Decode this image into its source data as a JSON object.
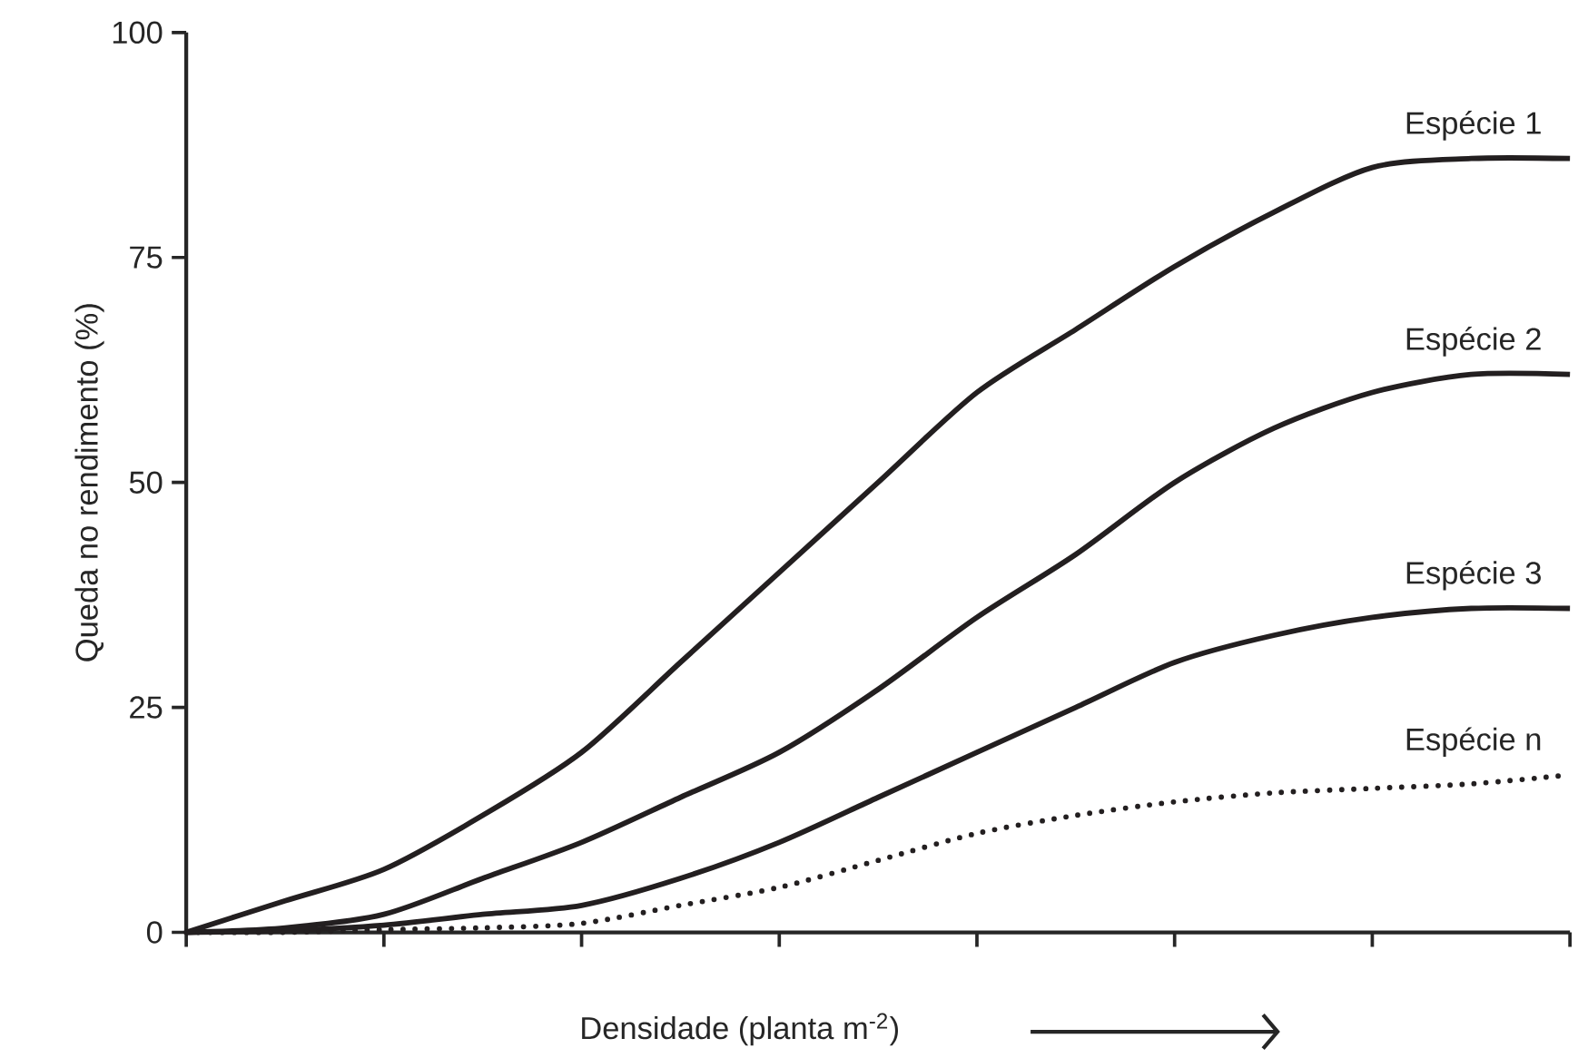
{
  "chart_data": {
    "type": "line",
    "xlabel": "Densidade (planta m$^{-2}$)",
    "ylabel": "Queda no rendimento (%)",
    "categories": [
      null,
      null,
      null,
      null,
      null,
      null,
      null,
      null,
      null,
      null,
      null,
      null,
      null,
      null,
      null
    ],
    "ylim": [
      0,
      100
    ],
    "yticks": [
      0,
      25,
      50,
      75,
      100
    ],
    "tick_labels": "y",
    "grid": false,
    "legend": false,
    "series": [
      {
        "name": "Espécie 1",
        "color": "#231f20",
        "line_style": "solid",
        "values": [
          0,
          3.5,
          7,
          13,
          20,
          30,
          40,
          50,
          60,
          67,
          74,
          80,
          85,
          86,
          86
        ]
      },
      {
        "name": "Espécie 2",
        "color": "#231f20",
        "line_style": "solid",
        "values": [
          0,
          0.5,
          2,
          6,
          10,
          15,
          20,
          27,
          35,
          42,
          50,
          56,
          60,
          62,
          62
        ]
      },
      {
        "name": "Espécie 3",
        "color": "#231f20",
        "line_style": "solid",
        "values": [
          0,
          0.2,
          0.8,
          2,
          3,
          6,
          10,
          15,
          20,
          25,
          30,
          33,
          35,
          36,
          36
        ]
      },
      {
        "name": "Espécie n",
        "color": "#231f20",
        "line_style": "dotted",
        "values": [
          0,
          0,
          0.3,
          0.5,
          1,
          3,
          5,
          8,
          11,
          13,
          14.5,
          15.5,
          16,
          16.5,
          17.5
        ]
      }
    ]
  }
}
